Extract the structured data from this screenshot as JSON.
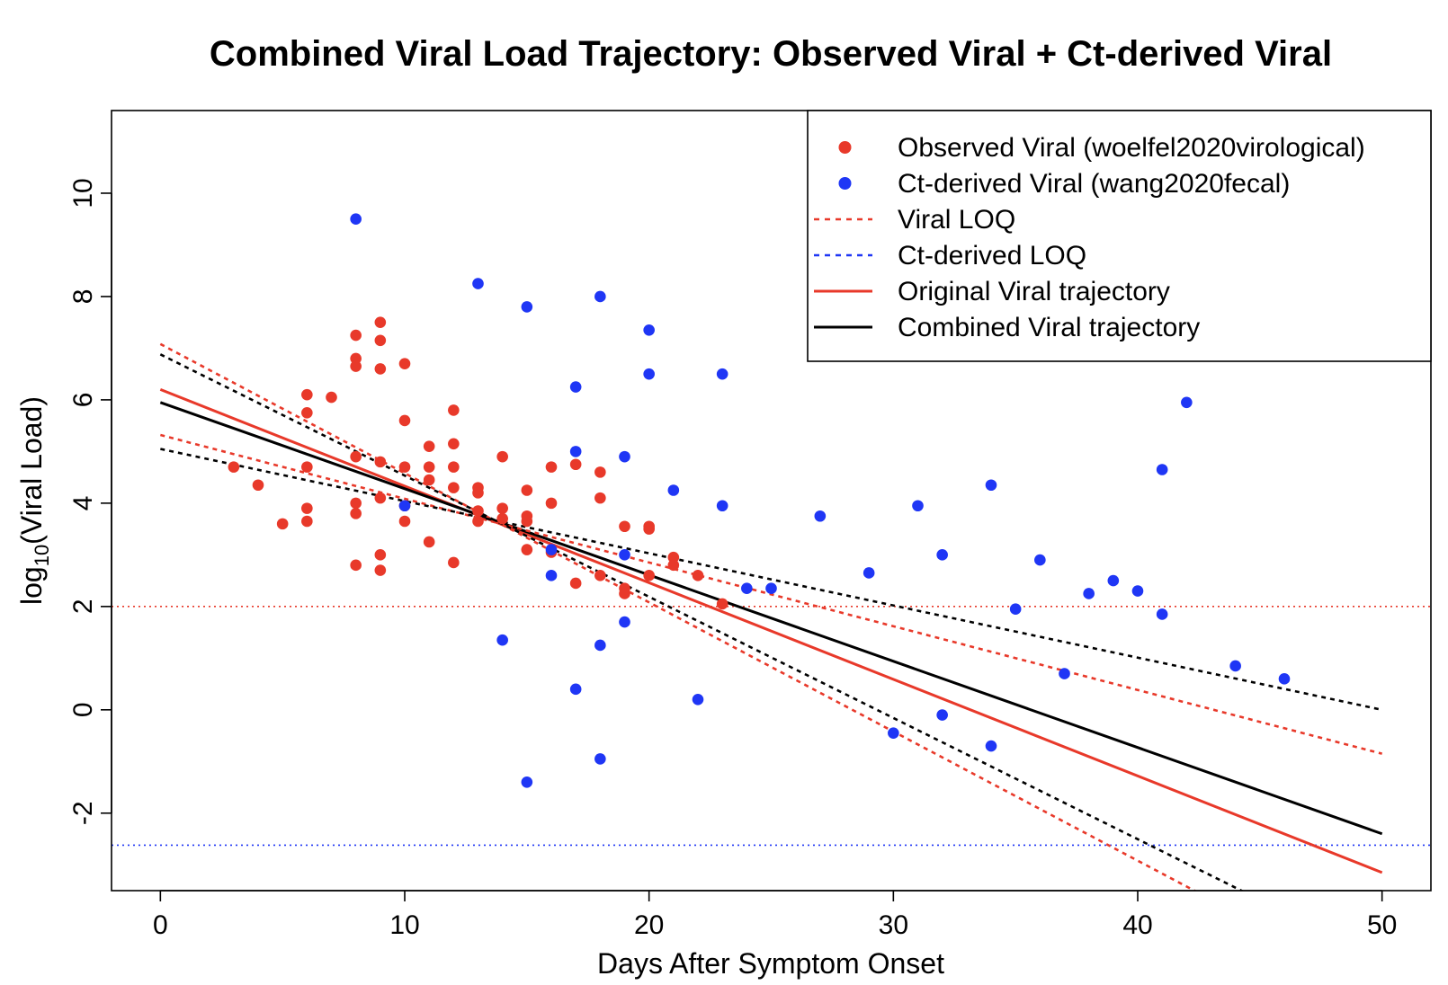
{
  "chart_data": {
    "type": "scatter",
    "title": "Combined Viral Load Trajectory: Observed Viral + Ct-derived Viral",
    "xlabel": "Days After Symptom Onset",
    "ylabel_prefix": "log",
    "ylabel_sub": "10",
    "ylabel_suffix": "(Viral Load)",
    "xlim": [
      -2,
      52
    ],
    "ylim": [
      -3.5,
      11.6
    ],
    "xticks": [
      0,
      10,
      20,
      30,
      40,
      50
    ],
    "yticks": [
      -2,
      0,
      2,
      4,
      6,
      8,
      10
    ],
    "legend_position": "top-right",
    "colors": {
      "observed": "#e8392a",
      "ct_derived": "#1f36f5",
      "red_line": "#e8392a",
      "black_line": "#000000",
      "blue_loq": "#1f36f5"
    },
    "legend": [
      {
        "label": "Observed Viral (woelfel2020virological)",
        "kind": "point",
        "color": "#e8392a"
      },
      {
        "label": "Ct-derived Viral (wang2020fecal)",
        "kind": "point",
        "color": "#1f36f5"
      },
      {
        "label": "Viral LOQ",
        "kind": "dotted",
        "color": "#e8392a"
      },
      {
        "label": "Ct-derived LOQ",
        "kind": "dotted",
        "color": "#1f36f5"
      },
      {
        "label": "Original Viral trajectory",
        "kind": "solid",
        "color": "#e8392a"
      },
      {
        "label": "Combined Viral trajectory",
        "kind": "solid",
        "color": "#000000"
      }
    ],
    "series": [
      {
        "name": "Observed Viral (woelfel2020virological)",
        "kind": "points",
        "color": "#e8392a",
        "points": [
          [
            3,
            4.7
          ],
          [
            4,
            4.35
          ],
          [
            5,
            3.6
          ],
          [
            6,
            6.1
          ],
          [
            6,
            5.75
          ],
          [
            6,
            4.7
          ],
          [
            6,
            3.9
          ],
          [
            6,
            3.65
          ],
          [
            7,
            6.05
          ],
          [
            8,
            7.25
          ],
          [
            8,
            6.8
          ],
          [
            8,
            6.65
          ],
          [
            8,
            4.9
          ],
          [
            8,
            4.0
          ],
          [
            8,
            3.8
          ],
          [
            8,
            2.8
          ],
          [
            9,
            7.5
          ],
          [
            9,
            7.15
          ],
          [
            9,
            6.6
          ],
          [
            9,
            4.8
          ],
          [
            9,
            4.1
          ],
          [
            9,
            3.0
          ],
          [
            9,
            2.7
          ],
          [
            10,
            6.7
          ],
          [
            10,
            5.6
          ],
          [
            10,
            4.7
          ],
          [
            10,
            3.95
          ],
          [
            10,
            3.65
          ],
          [
            11,
            5.1
          ],
          [
            11,
            4.7
          ],
          [
            11,
            4.45
          ],
          [
            11,
            3.25
          ],
          [
            12,
            5.8
          ],
          [
            12,
            5.15
          ],
          [
            12,
            4.7
          ],
          [
            12,
            4.3
          ],
          [
            12,
            2.85
          ],
          [
            13,
            4.3
          ],
          [
            13,
            4.2
          ],
          [
            13,
            3.85
          ],
          [
            13,
            3.65
          ],
          [
            14,
            4.9
          ],
          [
            14,
            3.9
          ],
          [
            14,
            3.7
          ],
          [
            15,
            4.25
          ],
          [
            15,
            3.75
          ],
          [
            15,
            3.65
          ],
          [
            15,
            3.1
          ],
          [
            16,
            4.7
          ],
          [
            16,
            4.0
          ],
          [
            16,
            3.05
          ],
          [
            17,
            4.75
          ],
          [
            17,
            2.45
          ],
          [
            18,
            4.6
          ],
          [
            18,
            4.1
          ],
          [
            18,
            2.6
          ],
          [
            19,
            3.55
          ],
          [
            19,
            2.35
          ],
          [
            19,
            2.25
          ],
          [
            20,
            3.55
          ],
          [
            20,
            3.5
          ],
          [
            20,
            2.6
          ],
          [
            21,
            2.95
          ],
          [
            21,
            2.8
          ],
          [
            22,
            2.6
          ],
          [
            23,
            2.05
          ]
        ]
      },
      {
        "name": "Ct-derived Viral (wang2020fecal)",
        "kind": "points",
        "color": "#1f36f5",
        "points": [
          [
            8,
            9.5
          ],
          [
            10,
            3.95
          ],
          [
            13,
            8.25
          ],
          [
            14,
            1.35
          ],
          [
            15,
            7.8
          ],
          [
            15,
            -1.4
          ],
          [
            16,
            3.1
          ],
          [
            16,
            2.6
          ],
          [
            17,
            6.25
          ],
          [
            17,
            5.0
          ],
          [
            17,
            0.4
          ],
          [
            18,
            8.0
          ],
          [
            18,
            1.25
          ],
          [
            18,
            -0.95
          ],
          [
            19,
            4.9
          ],
          [
            19,
            3.0
          ],
          [
            19,
            1.7
          ],
          [
            20,
            7.35
          ],
          [
            20,
            6.5
          ],
          [
            21,
            4.25
          ],
          [
            22,
            0.2
          ],
          [
            23,
            6.5
          ],
          [
            23,
            3.95
          ],
          [
            24,
            2.35
          ],
          [
            25,
            2.35
          ],
          [
            27,
            3.75
          ],
          [
            29,
            2.65
          ],
          [
            30,
            -0.45
          ],
          [
            31,
            3.95
          ],
          [
            32,
            3.0
          ],
          [
            32,
            -0.1
          ],
          [
            34,
            4.35
          ],
          [
            34,
            -0.7
          ],
          [
            35,
            1.95
          ],
          [
            36,
            2.9
          ],
          [
            37,
            0.7
          ],
          [
            38,
            2.25
          ],
          [
            39,
            2.5
          ],
          [
            40,
            2.3
          ],
          [
            41,
            4.65
          ],
          [
            41,
            1.85
          ],
          [
            42,
            5.95
          ],
          [
            44,
            0.85
          ],
          [
            46,
            0.6
          ]
        ]
      },
      {
        "name": "Original Viral trajectory",
        "kind": "line",
        "style": "solid",
        "color": "#e8392a",
        "x": [
          0,
          50
        ],
        "y": [
          6.2,
          -3.15
        ]
      },
      {
        "name": "Combined Viral trajectory",
        "kind": "line",
        "style": "solid",
        "color": "#000000",
        "x": [
          0,
          50
        ],
        "y": [
          5.95,
          -2.4
        ]
      },
      {
        "kind": "line",
        "style": "dotted",
        "color": "#e8392a",
        "x": [
          0,
          50
        ],
        "y": [
          5.32,
          -0.85
        ]
      },
      {
        "kind": "line",
        "style": "dotted",
        "color": "#e8392a",
        "x": [
          0,
          50
        ],
        "y": [
          7.08,
          -5.42
        ]
      },
      {
        "kind": "line",
        "style": "dotted",
        "color": "#000000",
        "x": [
          0,
          50
        ],
        "y": [
          5.05,
          0.0
        ]
      },
      {
        "kind": "line",
        "style": "dotted",
        "color": "#000000",
        "x": [
          0,
          50
        ],
        "y": [
          6.88,
          -4.85
        ]
      },
      {
        "name": "Viral LOQ",
        "kind": "hline",
        "style": "dotted",
        "color": "#e8392a",
        "y": 2.0
      },
      {
        "name": "Ct-derived LOQ",
        "kind": "hline",
        "style": "dotted",
        "color": "#1f36f5",
        "y": -2.62
      }
    ]
  }
}
